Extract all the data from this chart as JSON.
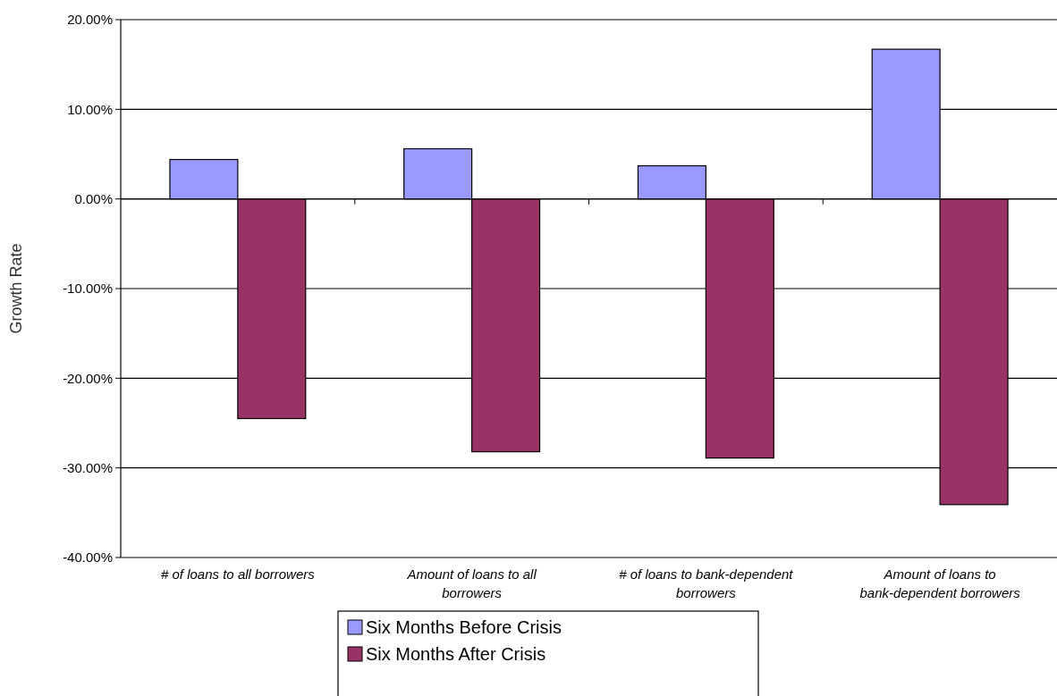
{
  "chart_data": {
    "type": "bar",
    "ylabel": "Growth Rate",
    "categories": [
      "# of loans to all borrowers",
      "Amount of loans to all borrowers",
      "# of loans to bank-dependent borrowers",
      "Amount of loans to bank-dependent borrowers"
    ],
    "series": [
      {
        "name": "Six Months Before Crisis",
        "color": "#9999ff",
        "values": [
          4.4,
          5.6,
          3.7,
          16.7
        ]
      },
      {
        "name": "Six Months After Crisis",
        "color": "#993366",
        "values": [
          -24.5,
          -28.2,
          -28.9,
          -34.1
        ]
      }
    ],
    "ylim": [
      -40,
      20
    ],
    "yticks": [
      {
        "value": -40,
        "label": "-40.00%"
      },
      {
        "value": -30,
        "label": "-30.00%"
      },
      {
        "value": -20,
        "label": "-20.00%"
      },
      {
        "value": -10,
        "label": "-10.00%"
      },
      {
        "value": 0,
        "label": "0.00%"
      },
      {
        "value": 10,
        "label": "10.00%"
      },
      {
        "value": 20,
        "label": "20.00%"
      }
    ],
    "grid": "y",
    "legend": "bottom"
  }
}
